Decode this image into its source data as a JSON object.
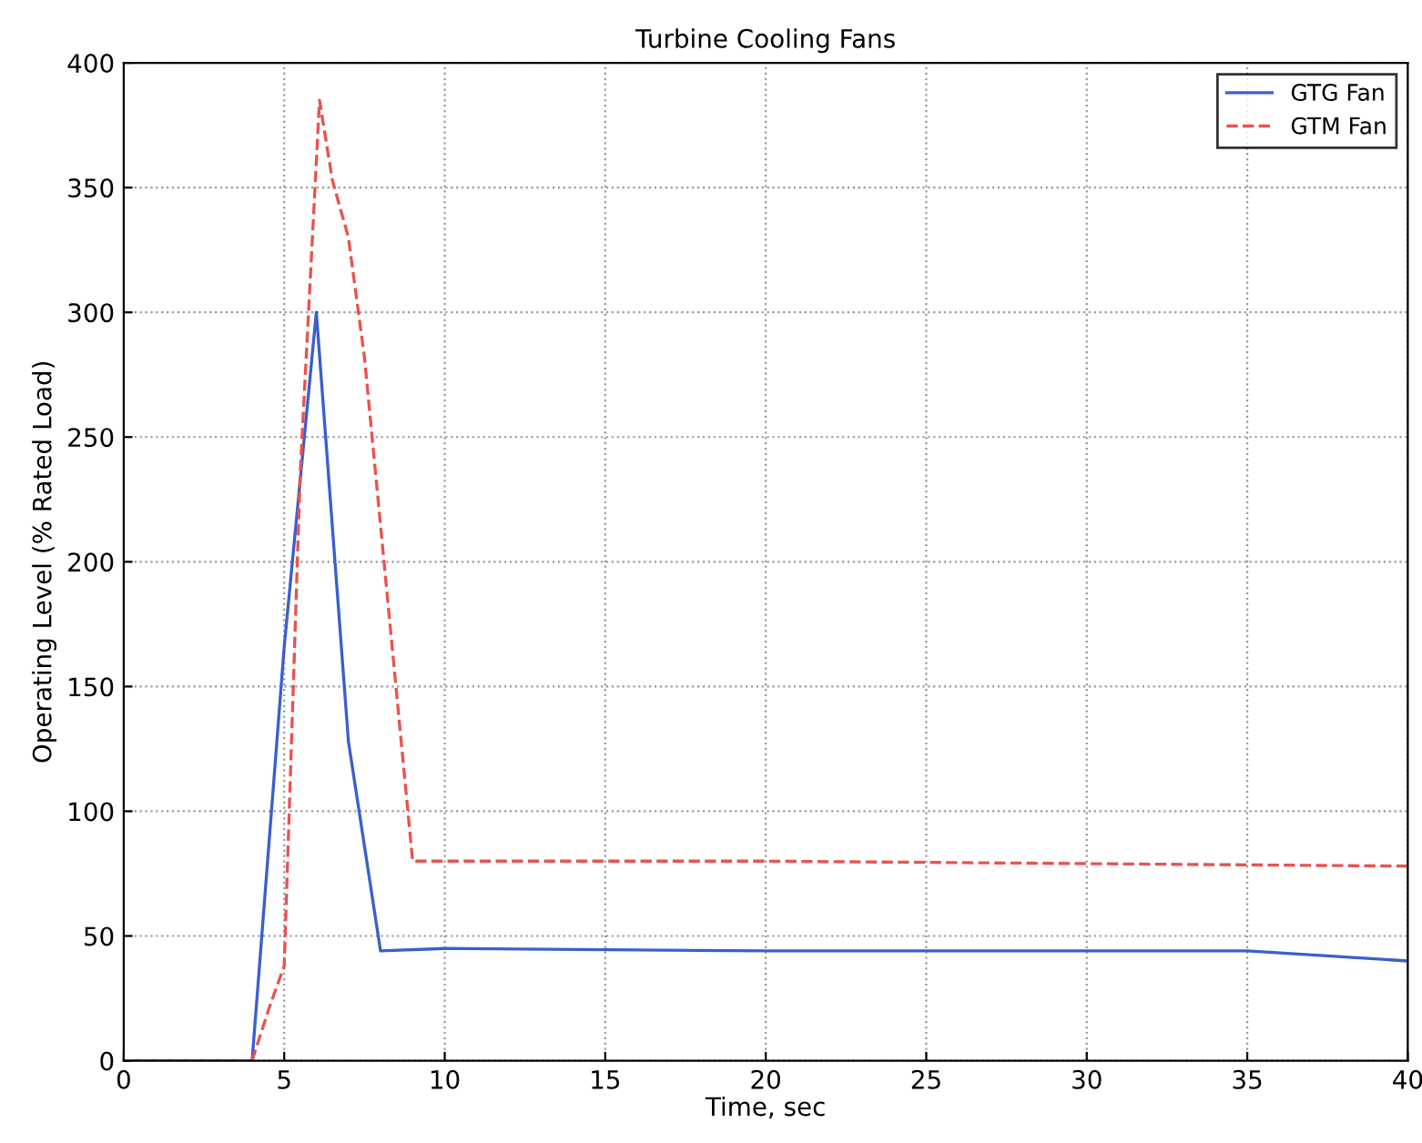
{
  "chart_data": {
    "type": "line",
    "title": "Turbine Cooling Fans",
    "xlabel": "Time, sec",
    "ylabel": "Operating Level (% Rated Load)",
    "series": [
      {
        "name": "GTG Fan",
        "color": "#3a5fcd",
        "line_style": "solid",
        "x": [
          0,
          4,
          5,
          6,
          7,
          8,
          10,
          20,
          30,
          35,
          40
        ],
        "values": [
          0,
          0,
          166,
          300,
          128,
          44,
          45,
          44,
          44,
          44,
          40
        ]
      },
      {
        "name": "GTM Fan",
        "color": "#e8534f",
        "line_style": "dashed",
        "x": [
          0,
          4,
          4.5,
          5,
          5.5,
          6.1,
          6.5,
          7,
          7.5,
          9,
          10,
          20,
          30,
          40
        ],
        "values": [
          0,
          0,
          20,
          38,
          236,
          385,
          353,
          330,
          282,
          80,
          80,
          80,
          79,
          78
        ]
      }
    ],
    "xlim": [
      0,
      40
    ],
    "xticks": [
      0,
      5,
      10,
      15,
      20,
      25,
      30,
      35,
      40
    ],
    "ylim": [
      0,
      400
    ],
    "yticks": [
      0,
      50,
      100,
      150,
      200,
      250,
      300,
      350,
      400
    ],
    "grid": true,
    "legend": "top right",
    "marker": "none"
  }
}
